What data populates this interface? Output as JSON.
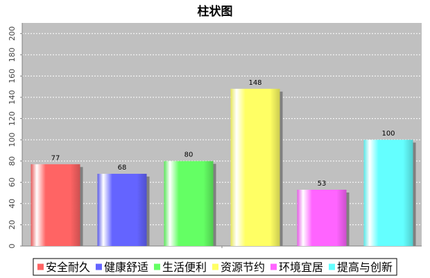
{
  "chart_data": {
    "type": "bar",
    "title": "柱状图",
    "xlabel": "",
    "ylabel": "",
    "categories": [
      "安全耐久",
      "健康舒适",
      "生活便利",
      "资源节约",
      "环境宜居",
      "提高与创新"
    ],
    "values": [
      77,
      68,
      80,
      148,
      53,
      100
    ],
    "colors": [
      "#ff6464",
      "#6464ff",
      "#64ff64",
      "#ffff64",
      "#ff64ff",
      "#64ffff"
    ],
    "ylim": [
      0,
      210
    ],
    "yticks": [
      0,
      20,
      40,
      60,
      80,
      100,
      120,
      140,
      160,
      180,
      200
    ],
    "grid": true,
    "legend_position": "bottom",
    "plot_background": "#c0c0c0"
  }
}
